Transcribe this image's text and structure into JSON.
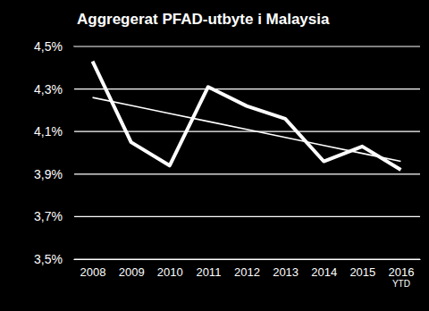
{
  "chart_data": {
    "type": "line",
    "title": "Aggregerat PFAD-utbyte i Malaysia",
    "categories": [
      "2008",
      "2009",
      "2010",
      "2011",
      "2012",
      "2013",
      "2014",
      "2015",
      "2016 YTD"
    ],
    "series": [
      {
        "color": "#ffffff",
        "line_style": "solid",
        "values": [
          4.43,
          4.05,
          3.94,
          4.31,
          4.22,
          4.16,
          3.96,
          4.03,
          3.92
        ]
      },
      {
        "color": "#ffffff",
        "line_style": "thin",
        "values": [
          4.26,
          4.2225,
          4.185,
          4.1475,
          4.11,
          4.0725,
          4.035,
          3.9975,
          3.96
        ]
      }
    ],
    "ylim": [
      3.5,
      4.5
    ],
    "yticks": [
      {
        "value": 3.5,
        "label": "3,5%"
      },
      {
        "value": 3.7,
        "label": "3,7%"
      },
      {
        "value": 3.9,
        "label": "3,9%"
      },
      {
        "value": 4.1,
        "label": "4,1%"
      },
      {
        "value": 4.3,
        "label": "4,3%"
      },
      {
        "value": 4.5,
        "label": "4,5%"
      }
    ],
    "grid": true
  }
}
